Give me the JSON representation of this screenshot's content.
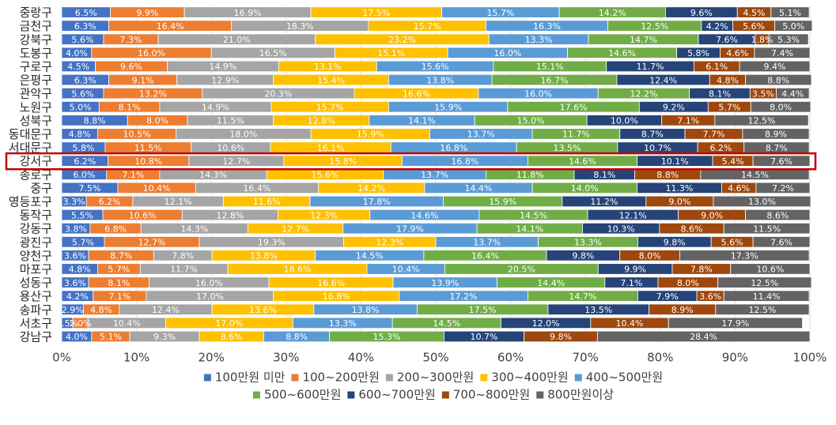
{
  "chart_data": {
    "type": "bar",
    "orientation": "horizontal",
    "stacked": true,
    "normalized_percent": true,
    "title": "",
    "xlabel": "",
    "ylabel": "",
    "xlim": [
      0,
      100
    ],
    "x_ticks": [
      "0%",
      "10%",
      "20%",
      "30%",
      "40%",
      "50%",
      "60%",
      "70%",
      "80%",
      "90%",
      "100%"
    ],
    "grid": true,
    "legend_position": "bottom",
    "highlight_category": "강서구",
    "highlight_color": "#c00000",
    "categories": [
      "중랑구",
      "금천구",
      "강북구",
      "도봉구",
      "구로구",
      "은평구",
      "관악구",
      "노원구",
      "성북구",
      "동대문구",
      "서대문구",
      "강서구",
      "종로구",
      "중구",
      "영등포구",
      "동작구",
      "강동구",
      "광진구",
      "양천구",
      "마포구",
      "성동구",
      "용산구",
      "송파구",
      "서초구",
      "강남구"
    ],
    "series": [
      {
        "name": "100만원 미만",
        "color": "#4472c4",
        "values": [
          6.5,
          6.3,
          5.6,
          4.0,
          4.5,
          6.3,
          5.6,
          5.0,
          8.8,
          4.8,
          5.8,
          6.2,
          6.0,
          7.5,
          3.3,
          5.5,
          3.8,
          5.7,
          3.6,
          4.8,
          3.6,
          4.2,
          2.9,
          1.5,
          4.0
        ]
      },
      {
        "name": "100~200만원",
        "color": "#ed7d31",
        "values": [
          9.9,
          16.4,
          7.3,
          16.0,
          9.6,
          9.1,
          13.2,
          8.1,
          8.0,
          10.5,
          11.5,
          10.8,
          7.1,
          10.4,
          6.2,
          10.6,
          6.8,
          12.7,
          8.7,
          5.7,
          8.1,
          7.1,
          4.8,
          2.0,
          5.1
        ]
      },
      {
        "name": "200~300만원",
        "color": "#a5a5a5",
        "values": [
          16.9,
          18.3,
          21.0,
          16.5,
          14.9,
          12.9,
          20.3,
          14.9,
          11.5,
          18.0,
          10.6,
          12.7,
          14.3,
          16.4,
          12.1,
          12.8,
          14.3,
          19.3,
          7.8,
          11.7,
          16.0,
          17.0,
          12.4,
          10.4,
          9.3
        ]
      },
      {
        "name": "300~400만원",
        "color": "#ffc000",
        "values": [
          17.5,
          15.7,
          23.2,
          15.1,
          13.1,
          15.4,
          16.6,
          15.7,
          12.8,
          15.9,
          16.1,
          15.8,
          15.6,
          14.2,
          11.6,
          12.3,
          12.7,
          12.3,
          13.8,
          18.6,
          16.6,
          16.8,
          13.6,
          17.0,
          8.6
        ]
      },
      {
        "name": "400~500만원",
        "color": "#5b9bd5",
        "values": [
          15.7,
          16.3,
          13.3,
          16.0,
          15.6,
          13.8,
          16.0,
          15.9,
          14.1,
          13.7,
          16.8,
          16.8,
          13.7,
          14.4,
          17.8,
          14.6,
          17.9,
          13.7,
          14.5,
          10.4,
          13.9,
          17.2,
          13.8,
          13.3,
          8.8
        ]
      },
      {
        "name": "500~600만원",
        "color": "#70ad47",
        "values": [
          14.2,
          12.5,
          14.7,
          14.6,
          15.1,
          16.7,
          12.2,
          17.6,
          15.0,
          11.7,
          13.5,
          14.6,
          11.8,
          14.0,
          15.9,
          14.5,
          14.1,
          13.3,
          16.4,
          20.5,
          14.4,
          14.7,
          17.5,
          14.5,
          15.3
        ]
      },
      {
        "name": "600~700만원",
        "color": "#264478",
        "values": [
          9.6,
          4.2,
          7.6,
          5.8,
          11.7,
          12.4,
          8.1,
          9.2,
          10.0,
          8.7,
          10.7,
          10.1,
          8.1,
          11.3,
          11.2,
          12.1,
          10.3,
          9.8,
          9.8,
          9.9,
          7.1,
          7.9,
          13.5,
          12.0,
          10.7
        ]
      },
      {
        "name": "700~800만원",
        "color": "#9e480e",
        "values": [
          4.5,
          5.6,
          1.8,
          4.6,
          6.1,
          4.8,
          3.5,
          5.7,
          7.1,
          7.7,
          6.2,
          5.4,
          8.8,
          4.6,
          9.0,
          9.0,
          8.6,
          5.6,
          8.0,
          7.8,
          8.0,
          3.6,
          8.9,
          10.4,
          9.8
        ]
      },
      {
        "name": "800만원이상",
        "color": "#636363",
        "values": [
          5.1,
          5.0,
          5.3,
          7.4,
          9.4,
          8.8,
          4.4,
          8.0,
          12.5,
          8.9,
          8.7,
          7.6,
          14.5,
          7.2,
          13.0,
          8.6,
          11.5,
          7.6,
          17.3,
          10.6,
          12.5,
          11.4,
          12.5,
          17.9,
          28.4
        ]
      }
    ]
  }
}
